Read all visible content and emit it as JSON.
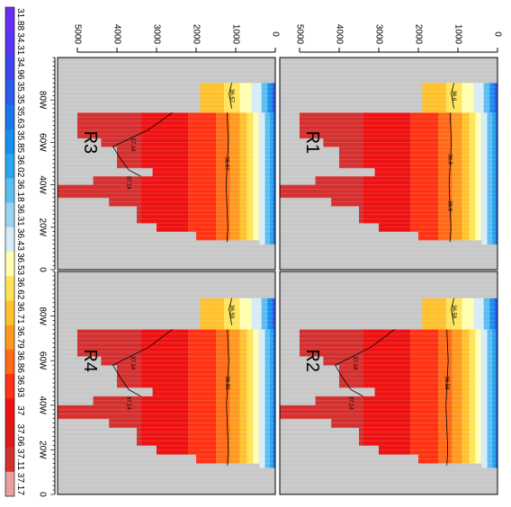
{
  "chart_data": {
    "type": "heatmap",
    "orientation": "rotated-90-clockwise",
    "panels": [
      {
        "label": "R1",
        "contour_labels": [
          "36.6",
          "36.6",
          "36.6"
        ]
      },
      {
        "label": "R2",
        "contour_labels": [
          "36.58",
          "36.58",
          "37.14",
          "37.14"
        ]
      },
      {
        "label": "R3",
        "contour_labels": [
          "36.57",
          "36.57",
          "37.14",
          "37.14"
        ]
      },
      {
        "label": "R4",
        "contour_labels": [
          "36.59",
          "36.59",
          "37.14",
          "37.14"
        ]
      }
    ],
    "depth_axis": {
      "ticks": [
        "0",
        "1000",
        "2000",
        "3000",
        "4000",
        "5000"
      ],
      "range": [
        0,
        5500
      ]
    },
    "longitude_axis": {
      "ticks": [
        "80W",
        "60W",
        "40W",
        "20W",
        "0"
      ],
      "range": [
        -100,
        0
      ]
    },
    "colorbar": {
      "labels": [
        "31.88",
        "34.31",
        "34.96",
        "35.35",
        "35.63",
        "35.85",
        "36.02",
        "36.18",
        "36.31",
        "36.43",
        "36.53",
        "36.62",
        "36.71",
        "36.79",
        "36.86",
        "36.93",
        "37",
        "37.06",
        "37.11",
        "37.17"
      ],
      "colors": [
        "#6a2ff5",
        "#5a35f2",
        "#3d44ee",
        "#2a5aee",
        "#1b76ee",
        "#178fee",
        "#2aa6ee",
        "#5bbdf0",
        "#9ad4f2",
        "#d7ecf6",
        "#ffffb2",
        "#ffe45a",
        "#ffc22e",
        "#ff9a20",
        "#ff6a18",
        "#ff3214",
        "#ee1212",
        "#dd1a1a",
        "#d43030",
        "#e8a0a0"
      ]
    },
    "missing_color": "#c8c8c8"
  }
}
